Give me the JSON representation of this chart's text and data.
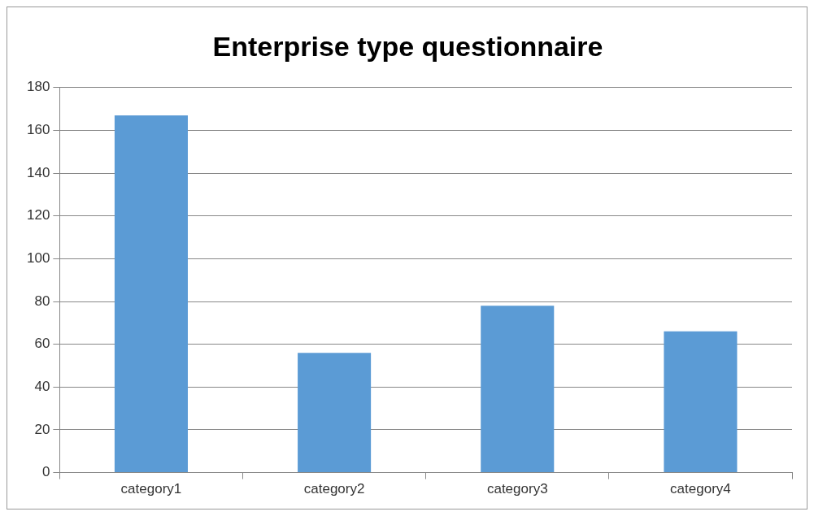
{
  "chart_data": {
    "type": "bar",
    "title": "Enterprise type questionnaire",
    "categories": [
      "category1",
      "category2",
      "category3",
      "category4"
    ],
    "values": [
      167,
      56,
      78,
      66
    ],
    "color": "#5b9bd5",
    "ylim": [
      0,
      180
    ],
    "yticks": [
      0,
      20,
      40,
      60,
      80,
      100,
      120,
      140,
      160,
      180
    ],
    "grid": "y"
  }
}
